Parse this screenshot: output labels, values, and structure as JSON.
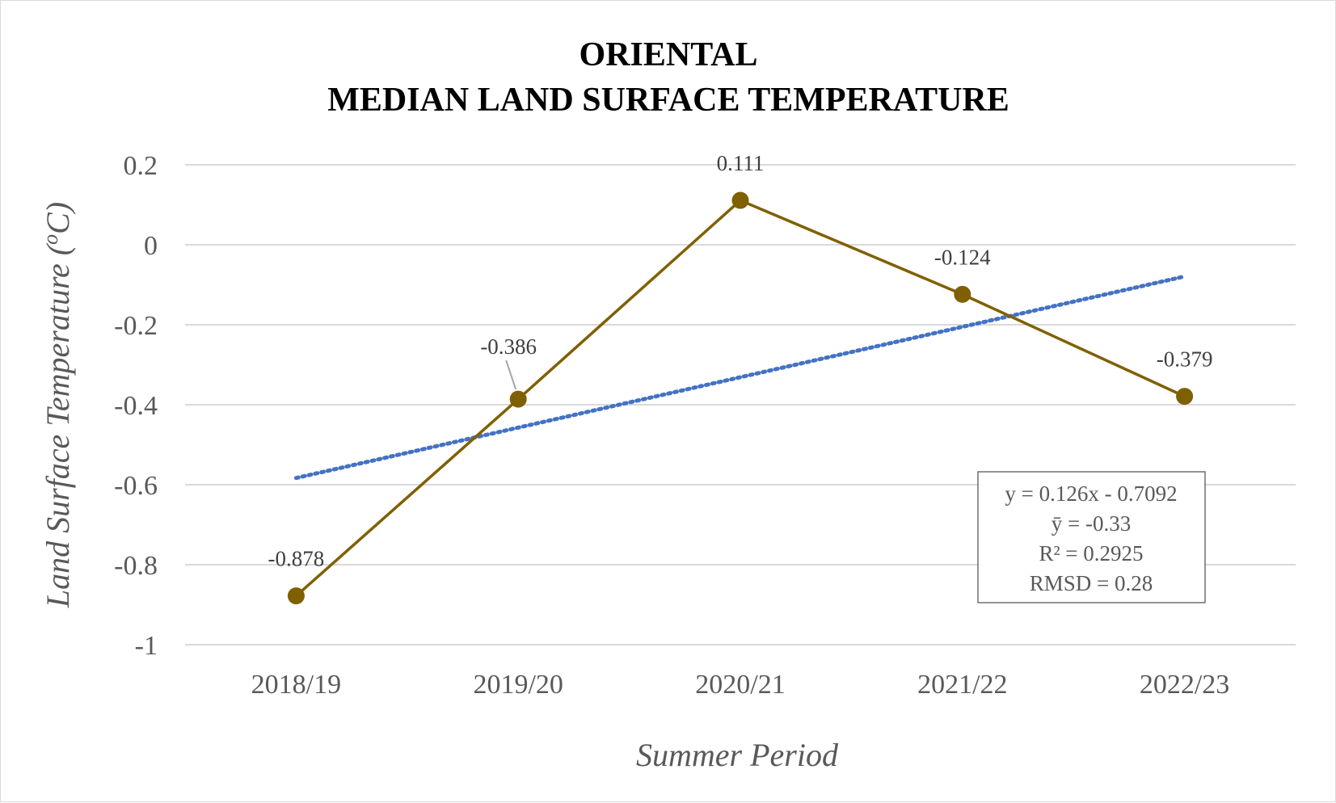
{
  "chart_data": {
    "type": "line",
    "title_lines": [
      "ORIENTAL",
      "MEDIAN LAND SURFACE TEMPERATURE"
    ],
    "xlabel": "Summer Period",
    "ylabel": "Land Surface Temperature (",
    "ylabel_unit_sup": "o",
    "ylabel_unit_tail": "C)",
    "categories": [
      "2018/19",
      "2019/20",
      "2020/21",
      "2021/22",
      "2022/23"
    ],
    "series": [
      {
        "values": [
          -0.878,
          -0.386,
          0.111,
          -0.124,
          -0.379
        ],
        "color": "#7f6000"
      }
    ],
    "data_labels": [
      "-0.878",
      "-0.386",
      "0.111",
      "-0.124",
      "-0.379"
    ],
    "trendline": {
      "slope": 0.126,
      "intercept": -0.7092,
      "style": "dotted",
      "color": "#4472c4"
    },
    "ylim": [
      -1,
      0.2
    ],
    "yticks": [
      0.2,
      0,
      -0.2,
      -0.4,
      -0.6,
      -0.8,
      -1
    ],
    "ytick_labels": [
      "0.2",
      "0",
      "-0.2",
      "-0.4",
      "-0.6",
      "-0.8",
      "-1"
    ],
    "grid": true,
    "stats_box": [
      "y = 0.126x - 0.7092",
      "ȳ =  -0.33",
      "R² = 0.2925",
      "RMSD = 0.28"
    ],
    "gridline_color": "#d9d9d9"
  }
}
